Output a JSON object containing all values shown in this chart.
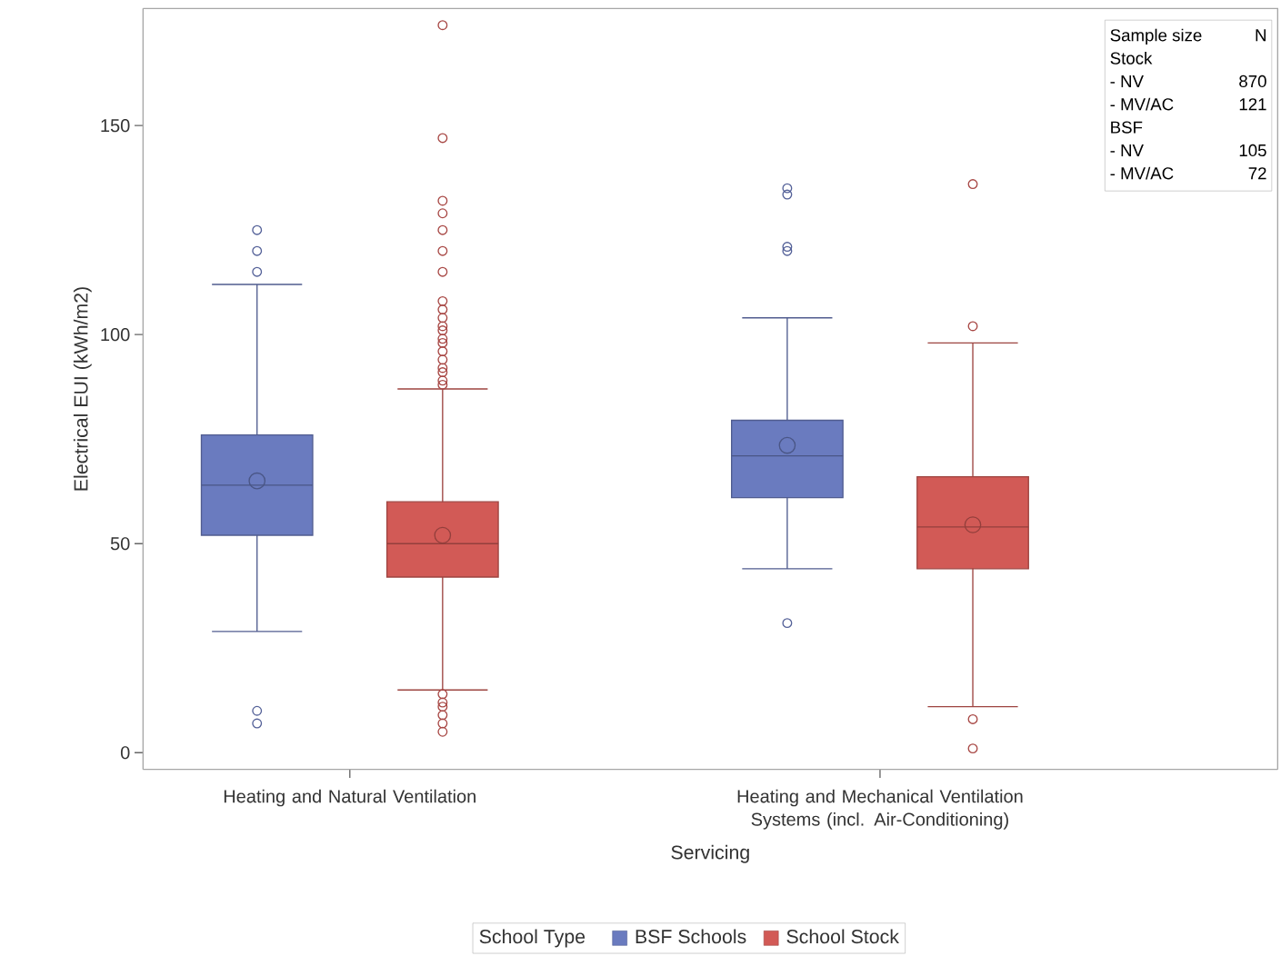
{
  "chart_data": {
    "type": "box",
    "categories": [
      "Heating and Natural Ventilation",
      "Heating and Mechanical Ventilation Systems (incl. Air-Conditioning)"
    ],
    "xlabel": "Servicing",
    "ylabel": "Electrical EUI (kWh/m2)",
    "ylim": [
      -4,
      178
    ],
    "yticks": [
      0,
      50,
      100,
      150
    ],
    "legend": "bottom",
    "legend_title": "School Type",
    "marker": "circle",
    "grid": false,
    "series": [
      {
        "name": "BSF Schools",
        "color": "#6a7bbf",
        "boxes": [
          {
            "low": 29,
            "q1": 52,
            "median": 64,
            "q3": 76,
            "high": 112,
            "mean": 65,
            "outliers": [
              125,
              120,
              115,
              10,
              7
            ]
          },
          {
            "low": 44,
            "q1": 61,
            "median": 71,
            "q3": 79.5,
            "high": 104,
            "mean": 73.5,
            "outliers": [
              135,
              133.5,
              121,
              120,
              31
            ]
          }
        ]
      },
      {
        "name": "School Stock",
        "color": "#d25a56",
        "boxes": [
          {
            "low": 15,
            "q1": 42,
            "median": 50,
            "q3": 60,
            "high": 87,
            "mean": 52,
            "outliers": [
              174,
              147,
              132,
              129,
              125,
              120,
              115,
              108,
              106,
              104,
              102,
              101,
              99,
              98,
              96,
              94,
              92,
              91,
              89,
              88,
              14,
              12,
              11,
              9,
              7,
              5
            ]
          },
          {
            "low": 11,
            "q1": 44,
            "median": 54,
            "q3": 66,
            "high": 98,
            "mean": 54.5,
            "outliers": [
              136,
              102,
              8,
              1
            ]
          }
        ]
      }
    ],
    "annotations": [
      "Sample size",
      "N",
      "Stock",
      "- NV",
      "870",
      "- MV/AC",
      "121",
      "BSF",
      "- NV",
      "105",
      "- MV/AC",
      "72"
    ]
  }
}
